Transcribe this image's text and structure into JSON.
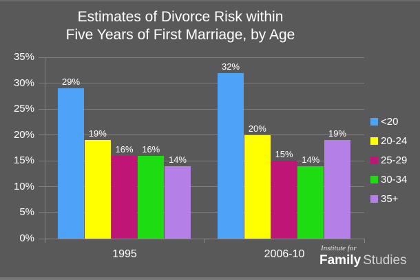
{
  "title": {
    "line1": "Estimates of Divorce Risk within",
    "line2": "Five Years of First Marriage, by Age"
  },
  "chart_data": {
    "type": "bar",
    "title": "Estimates of Divorce Risk within Five Years of First Marriage, by Age",
    "categories": [
      "1995",
      "2006-10"
    ],
    "series": [
      {
        "name": "<20",
        "color": "#4da3f7",
        "values": [
          29,
          32
        ],
        "value_labels": [
          "29%",
          "32%"
        ]
      },
      {
        "name": "20-24",
        "color": "#ffff00",
        "values": [
          19,
          20
        ],
        "value_labels": [
          "19%",
          "20%"
        ]
      },
      {
        "name": "25-29",
        "color": "#bf1577",
        "values": [
          16,
          15
        ],
        "value_labels": [
          "16%",
          "15%"
        ]
      },
      {
        "name": "30-34",
        "color": "#1edc12",
        "values": [
          16,
          14
        ],
        "value_labels": [
          "16%",
          "14%"
        ]
      },
      {
        "name": "35+",
        "color": "#b57fe8",
        "values": [
          14,
          19
        ],
        "value_labels": [
          "14%",
          "19%"
        ]
      }
    ],
    "ylim": [
      0,
      35
    ],
    "yticks": [
      0,
      5,
      10,
      15,
      20,
      25,
      30,
      35
    ],
    "ytick_labels": [
      "0%",
      "5%",
      "10%",
      "15%",
      "20%",
      "25%",
      "30%",
      "35%"
    ],
    "grid": true,
    "legend_position": "right",
    "xlabel": "",
    "ylabel": ""
  },
  "branding": {
    "tagline": "Institute for",
    "name_bold": "Family",
    "name_light": "Studies"
  },
  "colors": {
    "background": "#595959",
    "grid": "#7f7f7f",
    "text": "#ffffff"
  }
}
